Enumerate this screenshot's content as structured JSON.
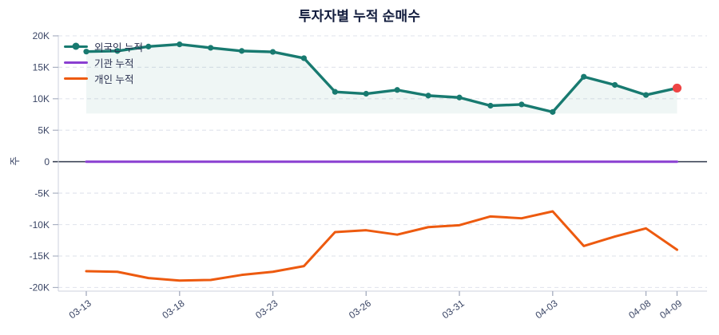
{
  "chart_data": {
    "type": "line",
    "title": "투자자별 누적 순매수",
    "ylabel": "주",
    "ylim": [
      -20000,
      20000
    ],
    "grid": true,
    "legend_position": "top-left",
    "n_points": 20,
    "yticks": [
      {
        "value": 20000,
        "label": "20K"
      },
      {
        "value": 15000,
        "label": "15K"
      },
      {
        "value": 10000,
        "label": "10K"
      },
      {
        "value": 5000,
        "label": "5K"
      },
      {
        "value": 0,
        "label": "0"
      },
      {
        "value": -5000,
        "label": "-5K"
      },
      {
        "value": -10000,
        "label": "-10K"
      },
      {
        "value": -15000,
        "label": "-15K"
      },
      {
        "value": -20000,
        "label": "-20K"
      }
    ],
    "xticks": [
      {
        "index": 0,
        "label": "03-13"
      },
      {
        "index": 3,
        "label": "03-18"
      },
      {
        "index": 6,
        "label": "03-23"
      },
      {
        "index": 9,
        "label": "03-26"
      },
      {
        "index": 12,
        "label": "03-31"
      },
      {
        "index": 15,
        "label": "04-03"
      },
      {
        "index": 18,
        "label": "04-08"
      },
      {
        "index": 19,
        "label": "04-09"
      }
    ],
    "series": [
      {
        "name": "외국인 누적",
        "color": "#187a70",
        "marker": true,
        "fill": true,
        "fill_color": "rgba(24,122,112,0.07)",
        "last_point_color": "#ee4444",
        "values": [
          17500,
          17600,
          18300,
          18650,
          18100,
          17600,
          17450,
          16450,
          11100,
          10800,
          11400,
          10500,
          10200,
          8900,
          9100,
          7900,
          13500,
          12200,
          10600,
          11700
        ]
      },
      {
        "name": "기관 누적",
        "color": "#8a3fd1",
        "marker": false,
        "fill": false,
        "values": [
          0,
          0,
          0,
          0,
          0,
          0,
          0,
          0,
          0,
          0,
          0,
          0,
          0,
          0,
          0,
          0,
          0,
          0,
          0,
          0
        ]
      },
      {
        "name": "개인 누적",
        "color": "#ed5a0f",
        "marker": false,
        "fill": false,
        "values": [
          -17400,
          -17500,
          -18500,
          -18900,
          -18800,
          -18000,
          -17500,
          -16600,
          -11200,
          -10900,
          -11600,
          -10400,
          -10100,
          -8700,
          -9000,
          -7900,
          -13400,
          -11900,
          -10600,
          -14000
        ]
      }
    ],
    "colors": {
      "grid": "#e3e6ee",
      "zero_line": "#3e4557",
      "axis_line": "#ccd1dd",
      "tick": "#aab1c2",
      "axis_text": "#3a4565",
      "title_text": "#121c3d"
    }
  }
}
